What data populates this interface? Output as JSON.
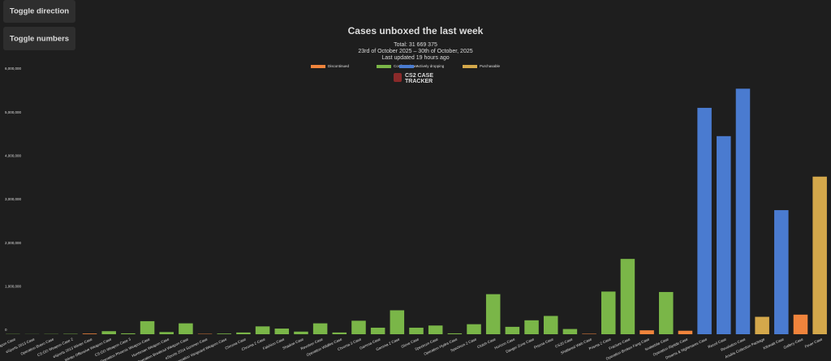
{
  "buttons": [
    "Toggle direction",
    "Toggle numbers"
  ],
  "chart_data": {
    "type": "bar",
    "title": "Cases unboxed the last week",
    "subtitle": [
      "Total: 31 669 375",
      "23rd of October 2025 – 30th of October, 2025",
      "Last updated 19 hours ago"
    ],
    "watermark": [
      "CS2 CASE",
      "TRACKER"
    ],
    "categories": [
      "CS:GO Weapon Case",
      "eSports 2013 Case",
      "Operation Bravo Case",
      "CS:GO Weapon Case 2",
      "eSports 2013 Winter Case",
      "Winter Offensive Weapon Case",
      "CS:GO Weapon Case 3",
      "Operation Phoenix Weapon Case",
      "Huntsman Weapon Case",
      "Operation Breakout Weapon Case",
      "eSports 2014 Summer Case",
      "Operation Vanguard Weapon Case",
      "Chroma Case",
      "Chroma 2 Case",
      "Falchion Case",
      "Shadow Case",
      "Revolver Case",
      "Operation Wildfire Case",
      "Chroma 3 Case",
      "Gamma Case",
      "Gamma 2 Case",
      "Glove Case",
      "Spectrum Case",
      "Operation Hydra Case",
      "Spectrum 2 Case",
      "Clutch Case",
      "Horizon Case",
      "Danger Zone Case",
      "Prisma Case",
      "CS20 Case",
      "Shattered Web Case",
      "Prisma 2 Case",
      "Fracture Case",
      "Operation Broken Fang Case",
      "Snakebite Case",
      "Operation Riptide Case",
      "Dreams & Nightmares Case",
      "Recoil Case",
      "Revolution Case",
      "Anubis Collection Package",
      "Kilowatt Case",
      "Gallery Case",
      "Fever Case"
    ],
    "series": [
      {
        "name": "Discontinued",
        "color": "#f0843c",
        "values": [
          null,
          null,
          null,
          null,
          15000,
          null,
          null,
          null,
          null,
          null,
          8000,
          null,
          null,
          null,
          null,
          null,
          null,
          null,
          null,
          null,
          null,
          null,
          null,
          null,
          null,
          null,
          null,
          null,
          null,
          null,
          10000,
          null,
          null,
          90000,
          null,
          80000,
          null,
          null,
          null,
          null,
          null,
          450000,
          null
        ]
      },
      {
        "name": "Confirmed rare",
        "color": "#7ab648",
        "values": [
          5000,
          3000,
          5000,
          8000,
          null,
          70000,
          20000,
          300000,
          50000,
          250000,
          null,
          15000,
          40000,
          180000,
          130000,
          60000,
          250000,
          40000,
          310000,
          150000,
          550000,
          150000,
          200000,
          20000,
          230000,
          920000,
          170000,
          320000,
          420000,
          120000,
          null,
          980000,
          1730000,
          null,
          970000,
          null,
          null,
          null,
          null,
          null,
          null,
          null,
          null
        ]
      },
      {
        "name": "Actively dropping",
        "color": "#4a7bd0",
        "values": [
          null,
          null,
          null,
          null,
          null,
          null,
          null,
          null,
          null,
          null,
          null,
          null,
          null,
          null,
          null,
          null,
          null,
          null,
          null,
          null,
          null,
          null,
          null,
          null,
          null,
          null,
          null,
          null,
          null,
          null,
          null,
          null,
          null,
          null,
          null,
          null,
          5200000,
          4550000,
          5640000,
          null,
          2850000,
          null,
          null
        ]
      },
      {
        "name": "Purchasable",
        "color": "#d4a84b",
        "values": [
          null,
          null,
          null,
          null,
          null,
          null,
          null,
          null,
          null,
          null,
          null,
          null,
          null,
          null,
          null,
          null,
          null,
          null,
          null,
          null,
          null,
          null,
          null,
          null,
          null,
          null,
          null,
          null,
          null,
          null,
          null,
          null,
          null,
          null,
          null,
          null,
          null,
          null,
          null,
          400000,
          null,
          null,
          3620000
        ]
      }
    ],
    "ylim": [
      0,
      6000000
    ],
    "yticks": [
      0,
      {
        "value": 1000000,
        "label": "1,000,000"
      },
      {
        "value": 2000000,
        "label": "2,000,000"
      },
      {
        "value": 3000000,
        "label": "3,000,000"
      },
      {
        "value": 4000000,
        "label": "4,000,000"
      },
      {
        "value": 5000000,
        "label": "5,000,000"
      },
      {
        "value": 6000000,
        "label": "6,000,000"
      }
    ],
    "grid": false,
    "legend": "top"
  }
}
